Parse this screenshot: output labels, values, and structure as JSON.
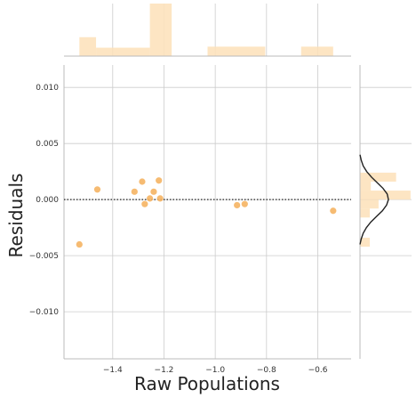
{
  "chart_data": {
    "type": "scatter",
    "title": "",
    "xlabel": "Raw Populations",
    "ylabel": "Residuals",
    "xlim": [
      -1.59,
      -0.47
    ],
    "ylim": [
      -0.0142,
      0.012
    ],
    "x_ticks": [
      -1.4,
      -1.2,
      -1.0,
      -0.8,
      -0.6
    ],
    "x_tick_labels": [
      "−1.4",
      "−1.2",
      "−1.0",
      "−0.8",
      "−0.6"
    ],
    "y_ticks": [
      -0.01,
      -0.005,
      0.0,
      0.005,
      0.01
    ],
    "y_tick_labels": [
      "−0.010",
      "−0.005",
      "0.000",
      "0.005",
      "0.010"
    ],
    "grid": true,
    "reference_line": {
      "y": 0.0,
      "style": "dotted"
    },
    "colors": {
      "points": "#f5b463",
      "hist_fill": "#fde0b8",
      "kde": "#222222",
      "reference": "#222222"
    },
    "points": [
      {
        "x": -1.53,
        "y": -0.004
      },
      {
        "x": -1.46,
        "y": 0.0009
      },
      {
        "x": -1.315,
        "y": 0.0007
      },
      {
        "x": -1.285,
        "y": 0.0016
      },
      {
        "x": -1.275,
        "y": -0.0004
      },
      {
        "x": -1.255,
        "y": 0.0001
      },
      {
        "x": -1.24,
        "y": 0.0007
      },
      {
        "x": -1.22,
        "y": 0.0017
      },
      {
        "x": -1.215,
        "y": 0.0001
      },
      {
        "x": -0.915,
        "y": -0.0005
      },
      {
        "x": -0.885,
        "y": -0.0004
      },
      {
        "x": -0.54,
        "y": -0.001
      }
    ],
    "marginal_x_histogram": {
      "max_density": 1.0,
      "bins": [
        {
          "start": -1.53,
          "end": -1.465,
          "density": 0.36
        },
        {
          "start": -1.465,
          "end": -1.255,
          "density": 0.16
        },
        {
          "start": -1.255,
          "end": -1.17,
          "density": 1.0
        },
        {
          "start": -1.03,
          "end": -0.805,
          "density": 0.18
        },
        {
          "start": -0.665,
          "end": -0.54,
          "density": 0.18
        }
      ]
    },
    "marginal_y_histogram": {
      "max_density": 1.0,
      "bins": [
        {
          "start": -0.0042,
          "end": -0.0034,
          "density": 0.19
        },
        {
          "start": -0.0016,
          "end": -0.0008,
          "density": 0.19
        },
        {
          "start": -0.0008,
          "end": 0.0,
          "density": 0.36
        },
        {
          "start": 0.0,
          "end": 0.0008,
          "density": 0.98
        },
        {
          "start": 0.0008,
          "end": 0.0016,
          "density": 0.21
        },
        {
          "start": 0.0016,
          "end": 0.0024,
          "density": 0.7
        }
      ]
    },
    "marginal_y_kde": {
      "max_density": 1.0,
      "points": [
        {
          "y": -0.004,
          "density": 0.0
        },
        {
          "y": -0.0035,
          "density": 0.04
        },
        {
          "y": -0.003,
          "density": 0.1
        },
        {
          "y": -0.0025,
          "density": 0.2
        },
        {
          "y": -0.002,
          "density": 0.34
        },
        {
          "y": -0.0015,
          "density": 0.52
        },
        {
          "y": -0.001,
          "density": 0.7
        },
        {
          "y": -0.0005,
          "density": 0.83
        },
        {
          "y": 0.0,
          "density": 0.89
        },
        {
          "y": 0.0005,
          "density": 0.85
        },
        {
          "y": 0.001,
          "density": 0.72
        },
        {
          "y": 0.0015,
          "density": 0.54
        },
        {
          "y": 0.002,
          "density": 0.36
        },
        {
          "y": 0.0025,
          "density": 0.21
        },
        {
          "y": 0.003,
          "density": 0.1
        },
        {
          "y": 0.0035,
          "density": 0.04
        },
        {
          "y": 0.004,
          "density": 0.0
        }
      ]
    }
  }
}
